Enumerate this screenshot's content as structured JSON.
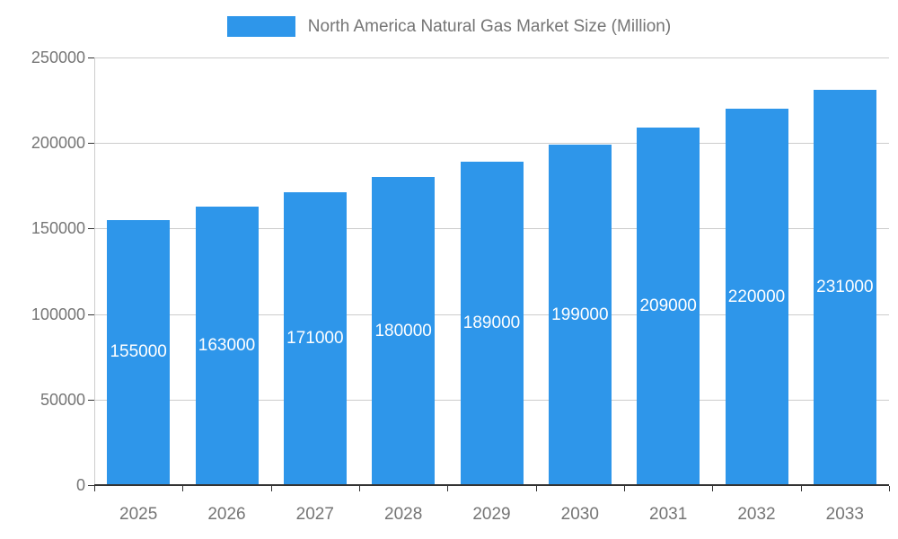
{
  "legend": {
    "title": "North America Natural Gas Market Size (Million)"
  },
  "chart_data": {
    "type": "bar",
    "title": "North America Natural Gas Market Size (Million)",
    "categories": [
      "2025",
      "2026",
      "2027",
      "2028",
      "2029",
      "2030",
      "2031",
      "2032",
      "2033"
    ],
    "values": [
      155000,
      163000,
      171000,
      180000,
      189000,
      199000,
      209000,
      220000,
      231000
    ],
    "data_labels": [
      "155000",
      "163000",
      "171000",
      "180000",
      "189000",
      "199000",
      "209000",
      "220000",
      "231000"
    ],
    "xlabel": "",
    "ylabel": "",
    "ylim": [
      0,
      250000
    ],
    "yticks": [
      0,
      50000,
      100000,
      150000,
      200000,
      250000
    ],
    "ytick_labels": [
      "0",
      "50000",
      "100000",
      "150000",
      "200000",
      "250000"
    ],
    "grid": true,
    "legend_position": "top",
    "bar_color": "#2E96EA",
    "bar_label_color": "#ffffff",
    "axis_text_color": "#757575",
    "grid_color": "#cccccc",
    "axis_line_color": "#333333"
  }
}
